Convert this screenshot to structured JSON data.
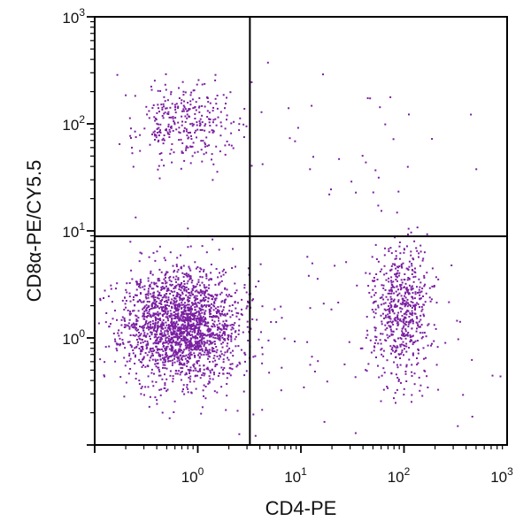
{
  "chart_data": {
    "type": "scatter",
    "title": "",
    "xlabel": "CD4-PE",
    "ylabel": "CD8α-PE/CY5.5",
    "x_scale": "log",
    "y_scale": "log",
    "xlim": [
      0.1,
      1000
    ],
    "ylim": [
      0.1,
      1000
    ],
    "x_ticks": [
      {
        "value": 1,
        "base": "10",
        "exp": "0"
      },
      {
        "value": 10,
        "base": "10",
        "exp": "1"
      },
      {
        "value": 100,
        "base": "10",
        "exp": "2"
      },
      {
        "value": 1000,
        "base": "10",
        "exp": "3"
      }
    ],
    "y_ticks": [
      {
        "value": 1,
        "base": "10",
        "exp": "0"
      },
      {
        "value": 10,
        "base": "10",
        "exp": "1"
      },
      {
        "value": 100,
        "base": "10",
        "exp": "2"
      },
      {
        "value": 1000,
        "base": "10",
        "exp": "3"
      }
    ],
    "quadrant_gates": {
      "x": 3.2,
      "y": 8.9
    },
    "point_color": "#7a1fa2",
    "grid": false,
    "populations": [
      {
        "x_center": 0.7,
        "y_center": 1.3,
        "x_spread_log": 0.28,
        "y_spread_log": 0.27,
        "count": 2100
      },
      {
        "x_center": 0.75,
        "y_center": 100,
        "x_spread_log": 0.28,
        "y_spread_log": 0.2,
        "count": 330
      },
      {
        "x_center": 95,
        "y_center": 1.8,
        "x_spread_log": 0.14,
        "y_spread_log": 0.32,
        "count": 620
      },
      {
        "x_center": 30,
        "y_center": 0.9,
        "x_spread_log": 0.8,
        "y_spread_log": 0.45,
        "count": 70
      },
      {
        "x_center": 25,
        "y_center": 60,
        "x_spread_log": 0.6,
        "y_spread_log": 0.35,
        "count": 30
      }
    ],
    "seed": 11
  }
}
